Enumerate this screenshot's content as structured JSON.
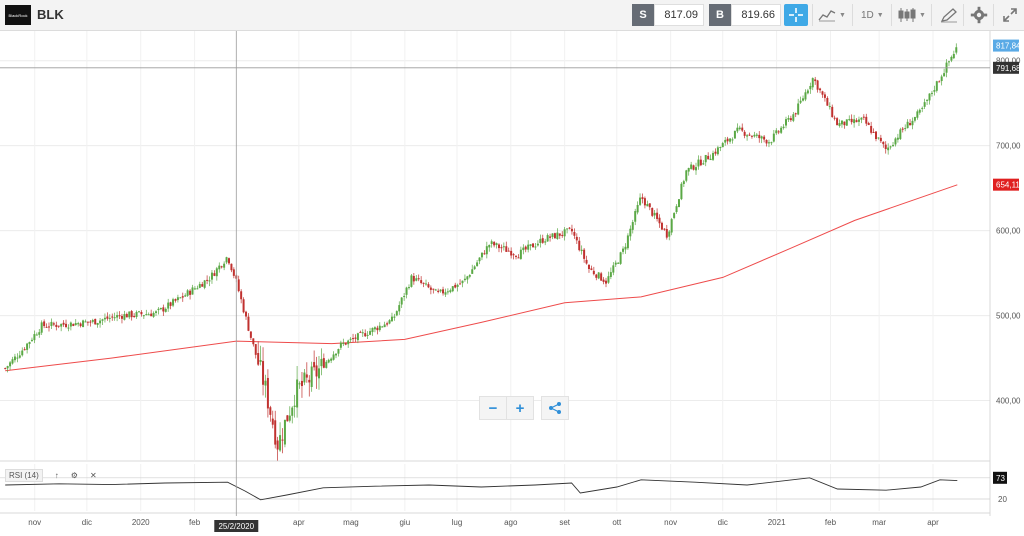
{
  "toolbar": {
    "logo_text": "BlackRock",
    "ticker": "BLK",
    "sell_label": "S",
    "sell_price": "817.09",
    "buy_label": "B",
    "buy_price": "819.66",
    "interval": "1D"
  },
  "y_axis": {
    "ticks": [
      "400,00",
      "500,00",
      "600,00",
      "700,00",
      "800,00"
    ],
    "last_price_label": "817,84",
    "crosshair_label": "791,68",
    "ma_label": "654,11"
  },
  "x_axis": {
    "labels": [
      "nov",
      "dic",
      "2020",
      "feb",
      "apr",
      "mag",
      "giu",
      "lug",
      "ago",
      "set",
      "ott",
      "nov",
      "dic",
      "2021",
      "feb",
      "mar",
      "apr"
    ],
    "crosshair_date": "25/2/2020"
  },
  "rsi": {
    "label": "RSI (14)",
    "value": "73",
    "level": "20"
  },
  "icons": {
    "crosshair": "crosshair-icon",
    "chart_type": "line-chart-icon",
    "candles": "candlestick-icon",
    "draw": "pencil-icon",
    "settings": "gear-icon",
    "expand": "expand-icon",
    "zoom_out": "minus-icon",
    "zoom_in": "plus-icon",
    "share": "share-icon"
  },
  "colors": {
    "up": "#5aa845",
    "down": "#c0312f",
    "ma": "#ee4b4b",
    "accent": "#3fa9e6",
    "last_price_bg": "#5aaae6",
    "ma_label_bg": "#e02020"
  },
  "chart_data": {
    "type": "candlestick",
    "y_range": [
      330,
      835
    ],
    "close_path": [
      [
        "2019-10-15",
        438
      ],
      [
        "2019-10-25",
        460
      ],
      [
        "2019-11-05",
        488
      ],
      [
        "2019-11-20",
        490
      ],
      [
        "2019-12-05",
        493
      ],
      [
        "2019-12-20",
        500
      ],
      [
        "2020-01-10",
        503
      ],
      [
        "2020-01-25",
        522
      ],
      [
        "2020-02-10",
        545
      ],
      [
        "2020-02-20",
        570
      ],
      [
        "2020-02-25",
        540
      ],
      [
        "2020-03-05",
        470
      ],
      [
        "2020-03-12",
        420
      ],
      [
        "2020-03-20",
        348
      ],
      [
        "2020-03-30",
        410
      ],
      [
        "2020-04-10",
        430
      ],
      [
        "2020-04-25",
        465
      ],
      [
        "2020-05-10",
        480
      ],
      [
        "2020-05-25",
        495
      ],
      [
        "2020-06-05",
        545
      ],
      [
        "2020-06-20",
        525
      ],
      [
        "2020-07-05",
        540
      ],
      [
        "2020-07-20",
        585
      ],
      [
        "2020-08-05",
        572
      ],
      [
        "2020-08-20",
        590
      ],
      [
        "2020-09-05",
        600
      ],
      [
        "2020-09-15",
        555
      ],
      [
        "2020-09-25",
        540
      ],
      [
        "2020-10-05",
        578
      ],
      [
        "2020-10-15",
        640
      ],
      [
        "2020-10-30",
        595
      ],
      [
        "2020-11-10",
        670
      ],
      [
        "2020-11-25",
        690
      ],
      [
        "2020-12-10",
        718
      ],
      [
        "2020-12-28",
        705
      ],
      [
        "2021-01-12",
        740
      ],
      [
        "2021-01-22",
        780
      ],
      [
        "2021-02-05",
        725
      ],
      [
        "2021-02-20",
        730
      ],
      [
        "2021-03-05",
        695
      ],
      [
        "2021-03-15",
        720
      ],
      [
        "2021-03-25",
        740
      ],
      [
        "2021-04-05",
        780
      ],
      [
        "2021-04-15",
        817
      ]
    ],
    "ma200": [
      [
        "2019-10-15",
        435
      ],
      [
        "2019-12-15",
        450
      ],
      [
        "2020-02-25",
        470
      ],
      [
        "2020-04-20",
        467
      ],
      [
        "2020-06-01",
        472
      ],
      [
        "2020-07-15",
        492
      ],
      [
        "2020-09-01",
        515
      ],
      [
        "2020-10-15",
        522
      ],
      [
        "2020-12-01",
        545
      ],
      [
        "2021-01-10",
        580
      ],
      [
        "2021-02-15",
        612
      ],
      [
        "2021-04-15",
        654
      ]
    ],
    "rsi_range": [
      0,
      100
    ],
    "rsi_levels": [
      20,
      73
    ],
    "rsi_path": [
      [
        "2019-10-15",
        55
      ],
      [
        "2019-11-15",
        58
      ],
      [
        "2019-12-15",
        56
      ],
      [
        "2020-01-15",
        60
      ],
      [
        "2020-02-20",
        62
      ],
      [
        "2020-03-01",
        40
      ],
      [
        "2020-03-10",
        18
      ],
      [
        "2020-03-25",
        30
      ],
      [
        "2020-04-15",
        48
      ],
      [
        "2020-05-15",
        52
      ],
      [
        "2020-06-15",
        55
      ],
      [
        "2020-07-15",
        50
      ],
      [
        "2020-08-15",
        55
      ],
      [
        "2020-09-05",
        60
      ],
      [
        "2020-09-10",
        35
      ],
      [
        "2020-10-01",
        50
      ],
      [
        "2020-10-15",
        68
      ],
      [
        "2020-11-15",
        62
      ],
      [
        "2020-12-15",
        55
      ],
      [
        "2021-01-20",
        73
      ],
      [
        "2021-02-05",
        45
      ],
      [
        "2021-03-05",
        42
      ],
      [
        "2021-03-25",
        50
      ],
      [
        "2021-04-05",
        68
      ],
      [
        "2021-04-15",
        66
      ]
    ]
  }
}
